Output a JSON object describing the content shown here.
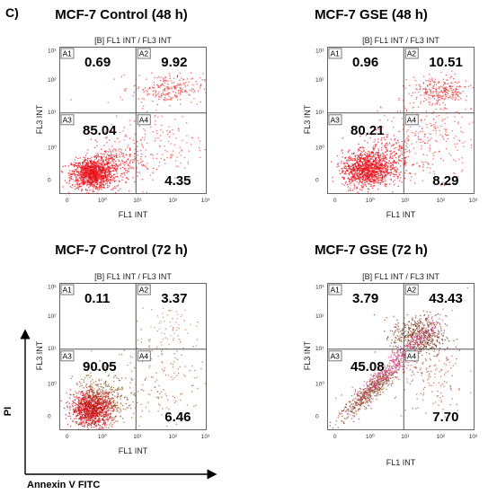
{
  "figure_label": "C)",
  "axis_titles": {
    "y": "PI",
    "x": "Annexin V FITC"
  },
  "chart_data": [
    {
      "type": "scatter",
      "title": "MCF-7 Control (48 h)",
      "subtitle": "[B] FL1 INT / FL3 INT",
      "xlabel": "FL1 INT",
      "ylabel": "FL3 INT",
      "scale": "log",
      "x_ticks": [
        "0",
        "10⁰",
        "10¹",
        "10²",
        "10³"
      ],
      "y_ticks": [
        "0",
        "10⁰",
        "10¹",
        "10²",
        "10³"
      ],
      "quadrants": [
        {
          "name": "A1",
          "value": "0.69"
        },
        {
          "name": "A2",
          "value": "9.92"
        },
        {
          "name": "A3",
          "value": "85.04"
        },
        {
          "name": "A4",
          "value": "4.35"
        }
      ],
      "clusters": [
        {
          "cx": 0.22,
          "cy": 0.14,
          "sx": 0.07,
          "sy": 0.05,
          "n": 1100,
          "color": "#e8101a"
        },
        {
          "cx": 0.36,
          "cy": 0.2,
          "sx": 0.1,
          "sy": 0.07,
          "n": 300,
          "color": "#e8101a"
        },
        {
          "cx": 0.73,
          "cy": 0.72,
          "sx": 0.12,
          "sy": 0.05,
          "n": 230,
          "color": "#f03030"
        },
        {
          "cx": 0.65,
          "cy": 0.35,
          "sx": 0.17,
          "sy": 0.14,
          "n": 180,
          "color": "#f04040"
        }
      ]
    },
    {
      "type": "scatter",
      "title": "MCF-7 GSE (48 h)",
      "subtitle": "[B] FL1 INT / FL3 INT",
      "xlabel": "FL1 INT",
      "ylabel": "FL3 INT",
      "scale": "log",
      "x_ticks": [
        "0",
        "10⁰",
        "10¹",
        "10²",
        "10³"
      ],
      "y_ticks": [
        "0",
        "10⁰",
        "10¹",
        "10²",
        "10³"
      ],
      "quadrants": [
        {
          "name": "A1",
          "value": "0.96"
        },
        {
          "name": "A2",
          "value": "10.51"
        },
        {
          "name": "A3",
          "value": "80.21"
        },
        {
          "name": "A4",
          "value": "8.29"
        }
      ],
      "clusters": [
        {
          "cx": 0.26,
          "cy": 0.17,
          "sx": 0.08,
          "sy": 0.06,
          "n": 1000,
          "color": "#e8101a"
        },
        {
          "cx": 0.4,
          "cy": 0.24,
          "sx": 0.11,
          "sy": 0.08,
          "n": 320,
          "color": "#e8101a"
        },
        {
          "cx": 0.76,
          "cy": 0.7,
          "sx": 0.1,
          "sy": 0.05,
          "n": 260,
          "color": "#f03030"
        },
        {
          "cx": 0.7,
          "cy": 0.4,
          "sx": 0.16,
          "sy": 0.14,
          "n": 260,
          "color": "#f04040"
        }
      ]
    },
    {
      "type": "scatter",
      "title": "MCF-7 Control (72 h)",
      "subtitle": "[B] FL1 INT / FL3 INT",
      "xlabel": "FL1 INT",
      "ylabel": "FL3 INT",
      "scale": "log",
      "x_ticks": [
        "0",
        "10⁰",
        "10¹",
        "10²",
        "10³"
      ],
      "y_ticks": [
        "0",
        "10⁰",
        "10¹",
        "10²",
        "10³"
      ],
      "quadrants": [
        {
          "name": "A1",
          "value": "0.11"
        },
        {
          "name": "A2",
          "value": "3.37"
        },
        {
          "name": "A3",
          "value": "90.05"
        },
        {
          "name": "A4",
          "value": "6.46"
        }
      ],
      "clusters": [
        {
          "cx": 0.22,
          "cy": 0.15,
          "sx": 0.07,
          "sy": 0.06,
          "n": 1100,
          "color": "#d0101a"
        },
        {
          "cx": 0.3,
          "cy": 0.22,
          "sx": 0.1,
          "sy": 0.09,
          "n": 300,
          "color": "#8a5a20"
        },
        {
          "cx": 0.7,
          "cy": 0.35,
          "sx": 0.16,
          "sy": 0.16,
          "n": 160,
          "color": "#b06030"
        },
        {
          "cx": 0.75,
          "cy": 0.7,
          "sx": 0.1,
          "sy": 0.08,
          "n": 60,
          "color": "#c08060"
        }
      ]
    },
    {
      "type": "scatter",
      "title": "MCF-7 GSE (72 h)",
      "subtitle": "[B] FL1 INT / FL3 INT",
      "xlabel": "FL1 INT",
      "ylabel": "FL3 INT",
      "scale": "log",
      "x_ticks": [
        "0",
        "10⁰",
        "10¹",
        "10²",
        "10³"
      ],
      "y_ticks": [
        "0",
        "10⁰",
        "10¹",
        "10²",
        "10³"
      ],
      "quadrants": [
        {
          "name": "A1",
          "value": "3.79"
        },
        {
          "name": "A2",
          "value": "43.43"
        },
        {
          "name": "A3",
          "value": "45.08"
        },
        {
          "name": "A4",
          "value": "7.70"
        }
      ],
      "clusters": [
        {
          "cx": 0.3,
          "cy": 0.28,
          "sx": 0.09,
          "sy": 0.09,
          "n": 500,
          "color": "#8a4a20",
          "diag": true
        },
        {
          "cx": 0.62,
          "cy": 0.64,
          "sx": 0.09,
          "sy": 0.07,
          "n": 520,
          "color": "#7a3a20"
        },
        {
          "cx": 0.45,
          "cy": 0.45,
          "sx": 0.16,
          "sy": 0.16,
          "n": 400,
          "color": "#e04090",
          "diag": true
        },
        {
          "cx": 0.7,
          "cy": 0.35,
          "sx": 0.12,
          "sy": 0.14,
          "n": 150,
          "color": "#b05030"
        }
      ]
    }
  ]
}
